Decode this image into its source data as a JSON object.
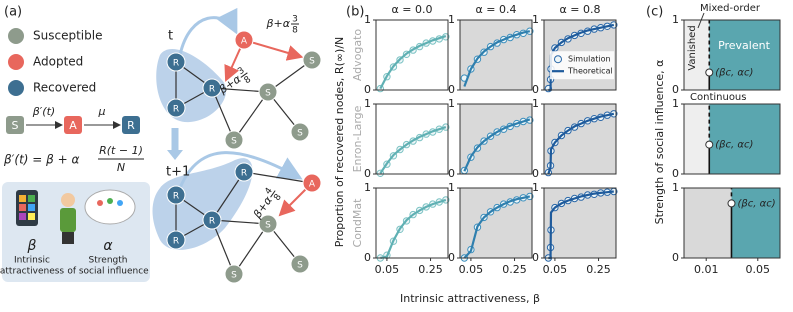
{
  "panel_a": {
    "label": "(a)",
    "legend": [
      "Susceptible",
      "Adopted",
      "Recovered"
    ],
    "transition": {
      "s": "S",
      "a": "A",
      "r": "R",
      "rate_in": "β′(t)",
      "rate_out": "μ"
    },
    "formula": {
      "lhs": "β′(t) = β + α",
      "num": "R(t − 1)",
      "den": "N"
    },
    "box": {
      "beta": "β",
      "beta_text": [
        "Intrinsic",
        "attractiveness"
      ],
      "alpha": "α",
      "alpha_text": [
        "Strength",
        "of social influence"
      ]
    }
  },
  "network": {
    "t": "t",
    "t1": "t+1",
    "nodes_t": [
      "R",
      "R",
      "R",
      "A",
      "S",
      "S",
      "S",
      "S"
    ],
    "nodes_t1": [
      "R",
      "R",
      "R",
      "R",
      "A",
      "S",
      "S",
      "S"
    ],
    "edge_labels": [
      {
        "base": "β+α",
        "num": "3",
        "den": "8"
      },
      {
        "base": "β+α",
        "num": "3",
        "den": "8"
      },
      {
        "base": "β+α",
        "num": "4",
        "den": "8"
      }
    ]
  },
  "panel_b": {
    "label": "(b)",
    "column_titles": [
      "α = 0.0",
      "α = 0.4",
      "α = 0.8"
    ],
    "row_labels": [
      "Advogato",
      "Enron-Large",
      "CondMat"
    ],
    "ylabel": "Proportion of recovered nodes, R(∞)/N",
    "xlabel": "Intrinsic attractiveness, β"
  },
  "panel_c": {
    "label": "(c)",
    "ylabel": "Strength of social influence, α",
    "mixed": "Mixed-order",
    "vanished": "Vanished",
    "prevalent": "Prevalent",
    "continuous": "Continuous"
  },
  "chart_data": [
    {
      "type": "line",
      "x": [
        0.02,
        0.05,
        0.08,
        0.11,
        0.14,
        0.17,
        0.2,
        0.23,
        0.26,
        0.29,
        0.32
      ],
      "xlim": [
        0,
        0.33
      ],
      "ylim": [
        0,
        1
      ],
      "yticks": [
        0,
        1
      ],
      "background": "#ffffff",
      "series": [
        {
          "color": "#7cc3c4",
          "marker": "circle",
          "values": [
            0.02,
            0.19,
            0.33,
            0.43,
            0.51,
            0.57,
            0.62,
            0.67,
            0.7,
            0.73,
            0.76
          ]
        },
        {
          "color": "#5fb0b3",
          "values": [
            0.02,
            0.2,
            0.34,
            0.44,
            0.52,
            0.58,
            0.63,
            0.67,
            0.71,
            0.74,
            0.77
          ]
        }
      ]
    },
    {
      "type": "line",
      "x": [
        0.02,
        0.05,
        0.08,
        0.11,
        0.14,
        0.17,
        0.2,
        0.23,
        0.26,
        0.29,
        0.32
      ],
      "xlim": [
        0,
        0.33
      ],
      "ylim": [
        0,
        1
      ],
      "yticks": [
        0,
        1
      ],
      "background": "#d9d9d9",
      "series": [
        {
          "color": "#3d8fbd",
          "marker": "circle",
          "values": [
            0.17,
            0.3,
            0.44,
            0.54,
            0.62,
            0.67,
            0.72,
            0.75,
            0.79,
            0.81,
            0.84
          ]
        },
        {
          "color": "#2f7fae",
          "values": [
            0.05,
            0.3,
            0.45,
            0.55,
            0.62,
            0.68,
            0.72,
            0.76,
            0.79,
            0.82,
            0.84
          ]
        }
      ]
    },
    {
      "type": "line",
      "x": [
        0.02,
        0.03,
        0.032,
        0.05,
        0.08,
        0.11,
        0.14,
        0.17,
        0.2,
        0.23,
        0.26,
        0.29,
        0.32
      ],
      "xlim": [
        0,
        0.33
      ],
      "ylim": [
        0,
        1
      ],
      "yticks": [
        0,
        1
      ],
      "background": "#d9d9d9",
      "legend": "lower right",
      "series": [
        {
          "name": "Simulation",
          "color": "#2a67a8",
          "marker": "circle",
          "values": [
            0.02,
            0.15,
            0.3,
            0.6,
            0.68,
            0.73,
            0.78,
            0.81,
            0.84,
            0.87,
            0.89,
            0.91,
            0.93
          ]
        },
        {
          "name": "Theoretical",
          "color": "#1f5b9c",
          "values": [
            0,
            0,
            0.5,
            0.6,
            0.68,
            0.74,
            0.78,
            0.82,
            0.85,
            0.87,
            0.89,
            0.91,
            0.93
          ]
        }
      ]
    },
    {
      "type": "line",
      "x": [
        0.02,
        0.05,
        0.08,
        0.11,
        0.14,
        0.17,
        0.2,
        0.23,
        0.26,
        0.29,
        0.32
      ],
      "xlim": [
        0,
        0.33
      ],
      "ylim": [
        0,
        1
      ],
      "yticks": [
        0,
        1
      ],
      "background": "#ffffff",
      "series": [
        {
          "color": "#7cc3c4",
          "marker": "circle",
          "values": [
            0.01,
            0.14,
            0.26,
            0.35,
            0.42,
            0.47,
            0.52,
            0.57,
            0.6,
            0.64,
            0.67
          ]
        },
        {
          "color": "#5fb0b3",
          "values": [
            0.01,
            0.15,
            0.27,
            0.35,
            0.42,
            0.48,
            0.53,
            0.57,
            0.61,
            0.64,
            0.67
          ]
        }
      ]
    },
    {
      "type": "line",
      "x": [
        0.02,
        0.05,
        0.08,
        0.11,
        0.14,
        0.17,
        0.2,
        0.23,
        0.26,
        0.29,
        0.32
      ],
      "xlim": [
        0,
        0.33
      ],
      "ylim": [
        0,
        1
      ],
      "yticks": [
        0,
        1
      ],
      "background": "#d9d9d9",
      "series": [
        {
          "color": "#3d8fbd",
          "marker": "circle",
          "values": [
            0.05,
            0.24,
            0.37,
            0.47,
            0.54,
            0.6,
            0.64,
            0.68,
            0.72,
            0.75,
            0.77
          ]
        },
        {
          "color": "#2f7fae",
          "values": [
            0.04,
            0.25,
            0.38,
            0.47,
            0.54,
            0.6,
            0.65,
            0.69,
            0.72,
            0.75,
            0.78
          ]
        }
      ]
    },
    {
      "type": "line",
      "x": [
        0.02,
        0.03,
        0.032,
        0.05,
        0.08,
        0.11,
        0.14,
        0.17,
        0.2,
        0.23,
        0.26,
        0.29,
        0.32
      ],
      "xlim": [
        0,
        0.33
      ],
      "ylim": [
        0,
        1
      ],
      "yticks": [
        0,
        1
      ],
      "background": "#d9d9d9",
      "series": [
        {
          "color": "#2a67a8",
          "marker": "circle",
          "values": [
            0.02,
            0.12,
            0.33,
            0.45,
            0.55,
            0.62,
            0.67,
            0.72,
            0.76,
            0.79,
            0.81,
            0.84,
            0.86
          ]
        },
        {
          "color": "#1f5b9c",
          "values": [
            0,
            0.1,
            0.35,
            0.45,
            0.55,
            0.62,
            0.68,
            0.72,
            0.76,
            0.79,
            0.82,
            0.84,
            0.86
          ]
        }
      ]
    },
    {
      "type": "line",
      "x": [
        0.02,
        0.05,
        0.08,
        0.11,
        0.14,
        0.17,
        0.2,
        0.23,
        0.26,
        0.29,
        0.32
      ],
      "xlim": [
        0,
        0.33
      ],
      "ylim": [
        0,
        1
      ],
      "yticks": [
        0,
        1
      ],
      "xticks": [
        0.05,
        0.25
      ],
      "background": "#ffffff",
      "series": [
        {
          "color": "#7cc3c4",
          "marker": "circle",
          "values": [
            0,
            0.04,
            0.24,
            0.41,
            0.53,
            0.62,
            0.68,
            0.73,
            0.77,
            0.8,
            0.83
          ]
        },
        {
          "color": "#5fb0b3",
          "values": [
            0,
            0.02,
            0.25,
            0.42,
            0.54,
            0.62,
            0.68,
            0.73,
            0.77,
            0.8,
            0.83
          ]
        }
      ]
    },
    {
      "type": "line",
      "x": [
        0.02,
        0.05,
        0.08,
        0.11,
        0.14,
        0.17,
        0.2,
        0.23,
        0.26,
        0.29,
        0.32
      ],
      "xlim": [
        0,
        0.33
      ],
      "ylim": [
        0,
        1
      ],
      "yticks": [
        0,
        1
      ],
      "xticks": [
        0.05,
        0.25
      ],
      "background": "#d9d9d9",
      "series": [
        {
          "color": "#3d8fbd",
          "marker": "circle",
          "values": [
            0,
            0.12,
            0.44,
            0.58,
            0.66,
            0.72,
            0.77,
            0.8,
            0.83,
            0.86,
            0.88
          ]
        },
        {
          "color": "#2f7fae",
          "values": [
            0,
            0.1,
            0.45,
            0.58,
            0.66,
            0.72,
            0.77,
            0.81,
            0.84,
            0.86,
            0.88
          ]
        }
      ]
    },
    {
      "type": "line",
      "x": [
        0.02,
        0.03,
        0.032,
        0.05,
        0.08,
        0.11,
        0.14,
        0.17,
        0.2,
        0.23,
        0.26,
        0.29,
        0.32
      ],
      "xlim": [
        0,
        0.33
      ],
      "ylim": [
        0,
        1
      ],
      "yticks": [
        0,
        1
      ],
      "xticks": [
        0.05,
        0.25
      ],
      "background": "#d9d9d9",
      "series": [
        {
          "color": "#2a67a8",
          "marker": "circle",
          "values": [
            0,
            0.15,
            0.4,
            0.72,
            0.78,
            0.82,
            0.85,
            0.87,
            0.9,
            0.91,
            0.93,
            0.94,
            0.95
          ]
        },
        {
          "color": "#1f5b9c",
          "values": [
            0,
            0,
            0.65,
            0.72,
            0.78,
            0.82,
            0.85,
            0.88,
            0.9,
            0.92,
            0.93,
            0.94,
            0.95
          ]
        }
      ]
    },
    {
      "type": "phase",
      "xscale": "log",
      "xlim": [
        0.005,
        0.1
      ],
      "ylim": [
        0,
        1
      ],
      "yticks": [
        0,
        1
      ],
      "beta_c": 0.011,
      "alpha_c": 0.25,
      "point_label": "(βc, αc)",
      "vanished_color": "#eeeeee",
      "prevalent_color": "#5aa6af"
    },
    {
      "type": "phase",
      "xscale": "log",
      "xlim": [
        0.005,
        0.1
      ],
      "ylim": [
        0,
        1
      ],
      "yticks": [
        0,
        1
      ],
      "beta_c": 0.011,
      "alpha_c": 0.42,
      "point_label": "(βc, αc)",
      "vanished_color": "#eeeeee",
      "prevalent_color": "#5aa6af"
    },
    {
      "type": "phase",
      "xscale": "log",
      "xlim": [
        0.005,
        0.1
      ],
      "ylim": [
        0,
        1
      ],
      "yticks": [
        0,
        1
      ],
      "xticks": [
        0.01,
        0.05
      ],
      "beta_c": 0.022,
      "alpha_c": 0.78,
      "point_label": "(βc, αc)",
      "vanished_color": "#d9d9d9",
      "prevalent_color": "#5aa6af"
    }
  ]
}
